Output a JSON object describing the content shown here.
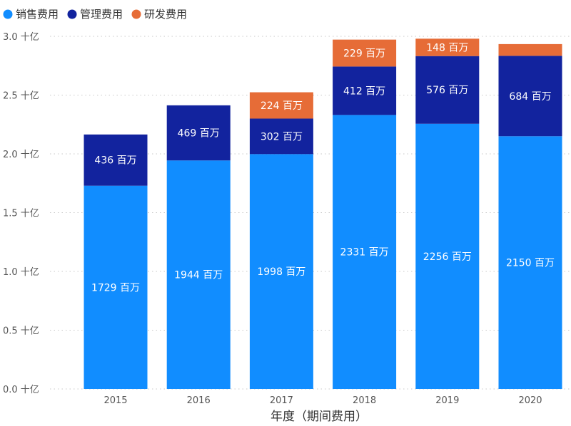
{
  "chart_data": {
    "type": "bar",
    "stacked": true,
    "title": "",
    "xlabel": "年度（期间费用）",
    "ylabel": "",
    "ylim": [
      0,
      3.0
    ],
    "yticks": [
      0,
      0.5,
      1.0,
      1.5,
      2.0,
      2.5,
      3.0
    ],
    "ytick_labels": [
      "0.0 十亿",
      "0.5 十亿",
      "1.0 十亿",
      "1.5 十亿",
      "2.0 十亿",
      "2.5 十亿",
      "3.0 十亿"
    ],
    "grid": true,
    "legend_position": "top-left",
    "categories": [
      "2015",
      "2016",
      "2017",
      "2018",
      "2019",
      "2020"
    ],
    "series": [
      {
        "name": "销售费用",
        "color": "#118DFF",
        "values": [
          1.729,
          1.944,
          1.998,
          2.331,
          2.256,
          2.15
        ],
        "labels": [
          "1729 百万",
          "1944 百万",
          "1998 百万",
          "2331 百万",
          "2256 百万",
          "2150 百万"
        ]
      },
      {
        "name": "管理费用",
        "color": "#12239E",
        "values": [
          0.436,
          0.469,
          0.302,
          0.412,
          0.576,
          0.684
        ],
        "labels": [
          "436 百万",
          "469 百万",
          "302 百万",
          "412 百万",
          "576 百万",
          "684 百万"
        ]
      },
      {
        "name": "研发费用",
        "color": "#E66C37",
        "values": [
          0,
          0,
          0.224,
          0.229,
          0.148,
          0.1
        ],
        "labels": [
          "",
          "",
          "224 百万",
          "229 百万",
          "148 百万",
          ""
        ]
      }
    ]
  }
}
